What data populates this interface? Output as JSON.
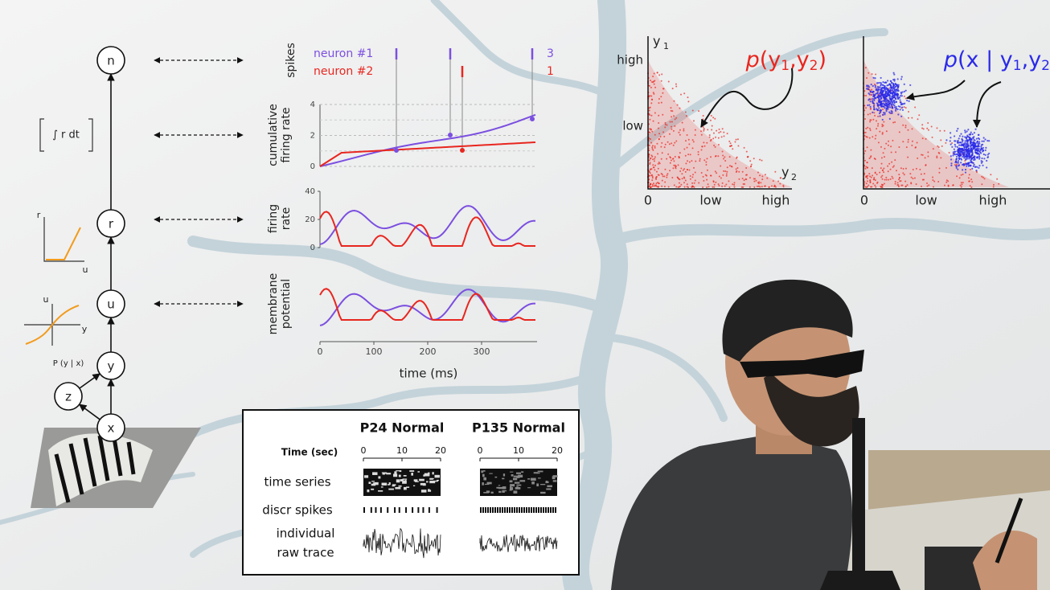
{
  "diagram": {
    "nodes": [
      "n",
      "r",
      "u",
      "y",
      "z",
      "x"
    ],
    "integral_label": "∫ r dt",
    "plot_r_u": {
      "y_label": "r",
      "x_label": "u"
    },
    "plot_u_y": {
      "y_label": "u",
      "x_label": "y"
    },
    "likelihood_label": "P (y | x)"
  },
  "traces": {
    "spikes_label": "spikes",
    "neurons": [
      {
        "name": "neuron #1",
        "color": "#7b4fe0",
        "count": 3
      },
      {
        "name": "neuron #2",
        "color": "#e8261f",
        "count": 1
      }
    ],
    "cumulative": {
      "label": [
        "cumulative",
        "firing rate"
      ],
      "yticks": [
        0,
        2,
        4
      ]
    },
    "firing": {
      "label": [
        "firing",
        "rate"
      ],
      "yticks": [
        0,
        20,
        40
      ]
    },
    "membrane": {
      "label": [
        "membrane",
        "potential"
      ]
    },
    "xticks": [
      0,
      100,
      200,
      300
    ],
    "xlabel": "time (ms)"
  },
  "joint": {
    "title": [
      "p",
      "(y",
      "1",
      ",y",
      "2",
      ")"
    ],
    "color": "#e8261f",
    "y_label": [
      "y",
      "1"
    ],
    "x_label": [
      "y",
      "2"
    ],
    "yticks": [
      "high",
      "low"
    ],
    "xticks": [
      "0",
      "low",
      "high"
    ]
  },
  "posterior": {
    "title": [
      "p",
      "(x | y",
      "1",
      ",y",
      "2"
    ],
    "color": "#2a2ae8",
    "xticks": [
      "0",
      "low",
      "high"
    ]
  },
  "recording": {
    "columns": [
      "P24 Normal",
      "P135 Normal"
    ],
    "time_label": "Time (sec)",
    "time_ticks": [
      0,
      10,
      20
    ],
    "rows": [
      [
        "time series"
      ],
      [
        "discr spikes"
      ],
      [
        "individual",
        "raw trace"
      ]
    ]
  }
}
